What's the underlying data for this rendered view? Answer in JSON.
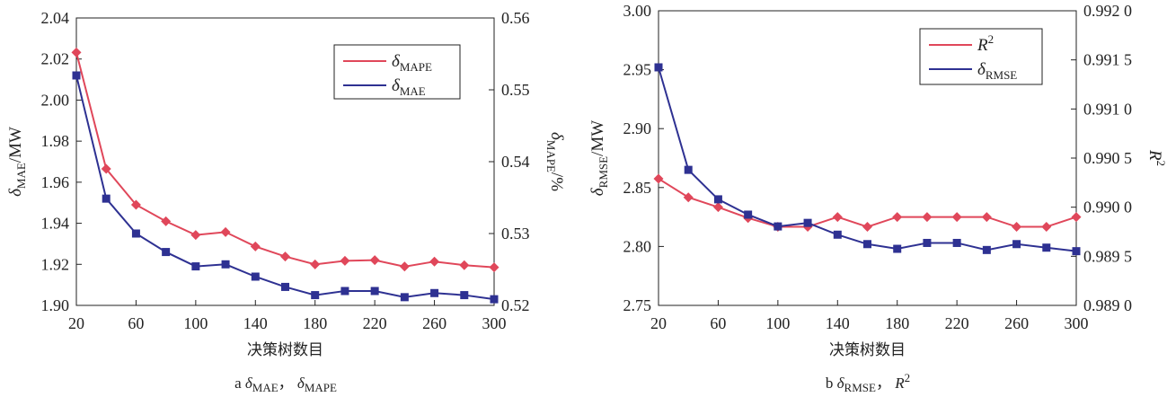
{
  "chart_data": [
    {
      "type": "line",
      "caption": {
        "prefix": "a",
        "sym1": "δ",
        "sub1": "MAE",
        "sep": "，",
        "sym2": "δ",
        "sub2": "MAPE"
      },
      "xlabel": "决策树数目",
      "ylabel": {
        "sym": "δ",
        "sub": "MAE",
        "unit": "/MW"
      },
      "y2label": {
        "sym": "δ",
        "sub": "MAPE",
        "unit": "/%"
      },
      "x": [
        20,
        40,
        60,
        80,
        100,
        120,
        140,
        160,
        180,
        200,
        220,
        240,
        260,
        280,
        300
      ],
      "xlim": [
        20,
        300
      ],
      "xticks": [
        "20",
        "60",
        "100",
        "140",
        "180",
        "220",
        "260",
        "300"
      ],
      "ylim": [
        1.9,
        2.04
      ],
      "yticks": [
        "1.90",
        "1.92",
        "1.94",
        "1.96",
        "1.98",
        "2.00",
        "2.02",
        "2.04"
      ],
      "y2lim": [
        0.52,
        0.56
      ],
      "y2ticks": [
        "0.52",
        "0.53",
        "0.54",
        "0.55",
        "0.56"
      ],
      "legend_position": "top-right",
      "series": [
        {
          "sym": "δ",
          "sub": "MAPE",
          "axis": "right",
          "color": "#e0475a",
          "marker": "diamond",
          "values": [
            0.5552,
            0.539,
            0.534,
            0.5317,
            0.5298,
            0.5302,
            0.5282,
            0.5268,
            0.5257,
            0.5262,
            0.5263,
            0.5254,
            0.5261,
            0.5256,
            0.5253
          ]
        },
        {
          "sym": "δ",
          "sub": "MAE",
          "axis": "left",
          "color": "#2e3192",
          "marker": "square",
          "values": [
            2.012,
            1.952,
            1.935,
            1.926,
            1.919,
            1.92,
            1.914,
            1.909,
            1.905,
            1.907,
            1.907,
            1.904,
            1.906,
            1.905,
            1.903
          ]
        }
      ]
    },
    {
      "type": "line",
      "caption": {
        "prefix": "b",
        "sym1": "δ",
        "sub1": "RMSE",
        "sep": "，",
        "sym2": "R",
        "sup2": "2"
      },
      "xlabel": "决策树数目",
      "ylabel": {
        "sym": "δ",
        "sub": "RMSE",
        "unit": "/MW"
      },
      "y2label": {
        "sym": "R",
        "sup": "2"
      },
      "x": [
        20,
        40,
        60,
        80,
        100,
        120,
        140,
        160,
        180,
        200,
        220,
        240,
        260,
        280,
        300
      ],
      "xlim": [
        20,
        300
      ],
      "xticks": [
        "20",
        "60",
        "100",
        "140",
        "180",
        "220",
        "260",
        "300"
      ],
      "ylim": [
        2.75,
        3.0
      ],
      "yticks": [
        "2.75",
        "2.80",
        "2.85",
        "2.90",
        "2.95",
        "3.00"
      ],
      "y2lim": [
        0.989,
        0.992
      ],
      "y2ticks": [
        "0.989 0",
        "0.989 5",
        "0.990 0",
        "0.990 5",
        "0.991 0",
        "0.991 5",
        "0.992 0"
      ],
      "legend_position": "top-right",
      "series": [
        {
          "sym": "R",
          "sup": "2",
          "axis": "right",
          "color": "#e0475a",
          "marker": "diamond",
          "values": [
            0.99029,
            0.9901,
            0.99,
            0.98989,
            0.9898,
            0.9898,
            0.9899,
            0.9898,
            0.9899,
            0.9899,
            0.9899,
            0.9899,
            0.9898,
            0.9898,
            0.9899
          ]
        },
        {
          "sym": "δ",
          "sub": "RMSE",
          "axis": "left",
          "color": "#2e3192",
          "marker": "square",
          "values": [
            2.952,
            2.865,
            2.84,
            2.827,
            2.817,
            2.82,
            2.81,
            2.802,
            2.798,
            2.803,
            2.803,
            2.797,
            2.802,
            2.799,
            2.796
          ]
        }
      ]
    }
  ]
}
